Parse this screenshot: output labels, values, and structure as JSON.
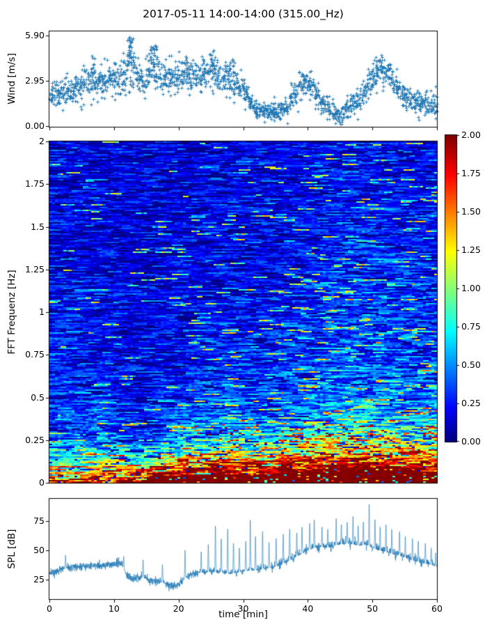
{
  "figure": {
    "title": "2017-05-11 14:00-14:00 (315.00_Hz)",
    "xlabel": "time [min]",
    "xticks": [
      {
        "v": 0,
        "label": "0"
      },
      {
        "v": 10,
        "label": "10"
      },
      {
        "v": 20,
        "label": "20"
      },
      {
        "v": 30,
        "label": "30"
      },
      {
        "v": 40,
        "label": "40"
      },
      {
        "v": 50,
        "label": "50"
      },
      {
        "v": 60,
        "label": "60"
      }
    ],
    "background": "#ffffff",
    "accent_color": "#1f77b4"
  },
  "chart_data": [
    {
      "id": "wind",
      "type": "scatter",
      "ylabel": "Wind [m/s]",
      "yticks": [
        {
          "v": 5.9,
          "label": "5.90"
        },
        {
          "v": 2.95,
          "label": "2.95"
        },
        {
          "v": 0.0,
          "label": "0.00"
        }
      ],
      "ylim": [
        -0.045,
        6.17
      ],
      "xlim": [
        0,
        60
      ],
      "marker": "plus",
      "color": "#1f77b4",
      "n_points": 1700,
      "envelope_t_min": [
        0,
        1,
        2,
        3,
        4,
        5,
        6,
        7,
        8,
        9,
        10,
        11,
        12,
        13,
        14,
        15,
        16,
        17,
        18,
        19,
        20,
        21,
        22,
        23,
        24,
        25,
        26,
        27,
        28,
        29,
        30,
        31,
        32,
        33,
        34,
        35,
        36,
        37,
        38,
        39,
        40,
        41,
        42,
        43,
        44,
        45,
        46,
        47,
        48,
        49,
        50,
        51,
        52,
        53,
        54,
        55,
        56,
        57,
        58,
        59,
        60
      ],
      "mean_mps": [
        1.9,
        2.1,
        2.3,
        2.4,
        2.5,
        2.6,
        2.7,
        2.8,
        3.0,
        3.1,
        3.2,
        3.4,
        3.8,
        3.4,
        3.1,
        3.3,
        3.7,
        3.3,
        3.1,
        3.2,
        3.4,
        3.3,
        3.2,
        3.3,
        3.4,
        3.5,
        3.3,
        3.2,
        3.1,
        2.8,
        2.4,
        1.6,
        1.1,
        1.0,
        0.9,
        1.0,
        1.1,
        1.5,
        2.2,
        2.6,
        2.8,
        2.2,
        1.6,
        1.3,
        0.9,
        0.6,
        1.2,
        1.5,
        1.7,
        2.4,
        3.0,
        3.6,
        3.8,
        3.1,
        2.3,
        1.9,
        1.6,
        1.4,
        1.5,
        1.3,
        1.5
      ],
      "spread_mps": [
        0.5,
        0.5,
        0.5,
        0.5,
        0.5,
        0.5,
        0.5,
        0.5,
        0.5,
        0.5,
        0.55,
        0.7,
        0.75,
        0.7,
        0.55,
        0.55,
        0.65,
        0.55,
        0.55,
        0.55,
        0.55,
        0.55,
        0.55,
        0.55,
        0.55,
        0.6,
        0.55,
        0.55,
        0.55,
        0.5,
        0.45,
        0.3,
        0.28,
        0.28,
        0.28,
        0.3,
        0.32,
        0.45,
        0.5,
        0.5,
        0.5,
        0.45,
        0.35,
        0.35,
        0.3,
        0.3,
        0.4,
        0.45,
        0.45,
        0.5,
        0.5,
        0.5,
        0.5,
        0.5,
        0.45,
        0.4,
        0.4,
        0.4,
        0.4,
        0.4,
        0.4
      ],
      "gusts": [
        {
          "t": 12.5,
          "peak": 5.9,
          "n": 26
        },
        {
          "t": 16.1,
          "peak": 5.35,
          "n": 18
        },
        {
          "t": 6.9,
          "peak": 4.7,
          "n": 10
        },
        {
          "t": 21.2,
          "peak": 4.5,
          "n": 8
        },
        {
          "t": 25.3,
          "peak": 5.0,
          "n": 14
        },
        {
          "t": 28.0,
          "peak": 4.4,
          "n": 8
        },
        {
          "t": 50.9,
          "peak": 4.35,
          "n": 12
        }
      ]
    },
    {
      "id": "fft_spectrogram",
      "type": "heatmap",
      "ylabel": "FFT Frequenz [Hz]",
      "yticks": [
        {
          "v": 2,
          "label": "2"
        },
        {
          "v": 1.75,
          "label": "1.75"
        },
        {
          "v": 1.5,
          "label": "1.5"
        },
        {
          "v": 1.25,
          "label": "1.25"
        },
        {
          "v": 1,
          "label": "1"
        },
        {
          "v": 0.75,
          "label": "0.75"
        },
        {
          "v": 0.5,
          "label": "0.5"
        },
        {
          "v": 0.25,
          "label": "0.25"
        },
        {
          "v": 0,
          "label": "0"
        }
      ],
      "ylim": [
        0,
        2
      ],
      "xlim": [
        0,
        60
      ],
      "colormap": "jet",
      "colormap_stops": [
        [
          0.0,
          "#000080"
        ],
        [
          0.11,
          "#0000ff"
        ],
        [
          0.36,
          "#00ffff"
        ],
        [
          0.62,
          "#ffff00"
        ],
        [
          0.87,
          "#ff0000"
        ],
        [
          1.0,
          "#800000"
        ]
      ],
      "vmin": 0.0,
      "vmax": 2.0,
      "colorbar_ticks": [
        {
          "v": 2.0,
          "label": "2.00"
        },
        {
          "v": 1.75,
          "label": "1.75"
        },
        {
          "v": 1.5,
          "label": "1.50"
        },
        {
          "v": 1.25,
          "label": "1.25"
        },
        {
          "v": 1.0,
          "label": "1.00"
        },
        {
          "v": 0.75,
          "label": "0.75"
        },
        {
          "v": 0.5,
          "label": "0.50"
        },
        {
          "v": 0.25,
          "label": "0.25"
        },
        {
          "v": 0.0,
          "label": "0.00"
        }
      ],
      "freq_centers_hz": [
        1.9,
        1.6,
        1.3,
        1.05,
        0.85,
        0.6,
        0.42,
        0.3,
        0.21,
        0.15,
        0.09,
        0.03
      ],
      "time_centers_min": [
        2.5,
        7.5,
        12.5,
        17.5,
        22.5,
        27.5,
        32.5,
        37.5,
        42.5,
        47.5,
        52.5,
        57.5
      ],
      "intensity_grid": [
        [
          0.18,
          0.17,
          0.14,
          0.14,
          0.16,
          0.17,
          0.17,
          0.18,
          0.2,
          0.22,
          0.21,
          0.2
        ],
        [
          0.19,
          0.18,
          0.15,
          0.15,
          0.17,
          0.18,
          0.18,
          0.2,
          0.23,
          0.26,
          0.24,
          0.22
        ],
        [
          0.2,
          0.19,
          0.15,
          0.16,
          0.18,
          0.2,
          0.19,
          0.22,
          0.26,
          0.3,
          0.27,
          0.24
        ],
        [
          0.22,
          0.21,
          0.16,
          0.17,
          0.2,
          0.23,
          0.21,
          0.25,
          0.3,
          0.34,
          0.3,
          0.27
        ],
        [
          0.24,
          0.23,
          0.17,
          0.19,
          0.23,
          0.27,
          0.24,
          0.29,
          0.34,
          0.38,
          0.34,
          0.3
        ],
        [
          0.27,
          0.27,
          0.19,
          0.22,
          0.28,
          0.33,
          0.29,
          0.35,
          0.4,
          0.44,
          0.4,
          0.36
        ],
        [
          0.32,
          0.33,
          0.23,
          0.28,
          0.36,
          0.44,
          0.38,
          0.46,
          0.52,
          0.57,
          0.52,
          0.47
        ],
        [
          0.4,
          0.42,
          0.3,
          0.38,
          0.5,
          0.62,
          0.54,
          0.65,
          0.74,
          0.8,
          0.73,
          0.66
        ],
        [
          0.52,
          0.57,
          0.42,
          0.55,
          0.75,
          0.92,
          0.82,
          0.98,
          1.1,
          1.18,
          1.08,
          1.0
        ],
        [
          0.7,
          0.8,
          0.62,
          0.85,
          1.1,
          1.28,
          1.18,
          1.35,
          1.48,
          1.55,
          1.45,
          1.38
        ],
        [
          1.0,
          1.15,
          1.15,
          1.55,
          1.7,
          1.8,
          1.78,
          1.88,
          1.92,
          1.95,
          1.92,
          1.88
        ],
        [
          1.45,
          1.6,
          1.85,
          2.0,
          2.0,
          2.0,
          2.0,
          2.0,
          2.0,
          2.0,
          2.0,
          2.0
        ]
      ],
      "texture": {
        "rows": 245,
        "cols": 139,
        "seg_min": 2,
        "seg_max": 6,
        "noise_base": 0.1,
        "noise_gain": 0.3,
        "bright_streak_base_p": 0.012,
        "bright_streak_time_gain": 0.05,
        "speckle_p": 0.025
      }
    },
    {
      "id": "spl",
      "type": "line",
      "ylabel": "SPL [dB]",
      "yticks": [
        {
          "v": 75,
          "label": "75"
        },
        {
          "v": 50,
          "label": "50"
        },
        {
          "v": 25,
          "label": "25"
        }
      ],
      "ylim": [
        8.6,
        93.7
      ],
      "xlim": [
        0,
        60
      ],
      "color": "#1f77b4",
      "line_width": 0.7,
      "noise_db": 1.6,
      "base_t_min": [
        0,
        1,
        2,
        3,
        4,
        5,
        6,
        7,
        8,
        9,
        10,
        11,
        12,
        13,
        14,
        15,
        16,
        17,
        18,
        19,
        20,
        21,
        22,
        23,
        24,
        25,
        26,
        27,
        28,
        29,
        30,
        31,
        32,
        33,
        34,
        35,
        36,
        37,
        38,
        39,
        40,
        41,
        42,
        43,
        44,
        45,
        46,
        47,
        48,
        49,
        50,
        51,
        52,
        53,
        54,
        55,
        56,
        57,
        58,
        59,
        60
      ],
      "base_db": [
        31,
        32,
        34,
        35,
        36,
        36,
        37,
        37,
        37,
        38,
        38,
        40,
        28,
        26,
        27,
        26,
        24,
        23,
        22,
        20,
        21,
        26,
        30,
        31,
        31,
        32,
        31,
        31,
        30,
        31,
        32,
        33,
        33,
        34,
        35,
        36,
        38,
        41,
        44,
        47,
        50,
        52,
        53,
        52,
        54,
        55,
        56,
        55,
        54,
        55,
        52,
        50,
        49,
        47,
        46,
        44,
        42,
        40,
        39,
        38,
        36
      ],
      "spikes": [
        [
          2.5,
          46
        ],
        [
          11.5,
          45
        ],
        [
          14.5,
          42
        ],
        [
          17.5,
          38
        ],
        [
          21,
          50
        ],
        [
          23.5,
          49
        ],
        [
          24.6,
          55
        ],
        [
          25.7,
          71
        ],
        [
          26.6,
          60
        ],
        [
          27.6,
          68
        ],
        [
          28.5,
          56
        ],
        [
          29.4,
          52
        ],
        [
          30.4,
          58
        ],
        [
          31.1,
          76
        ],
        [
          31.9,
          62
        ],
        [
          33,
          66
        ],
        [
          34,
          57
        ],
        [
          35.1,
          60
        ],
        [
          36.2,
          64
        ],
        [
          37.2,
          68
        ],
        [
          38.3,
          65
        ],
        [
          39.1,
          70
        ],
        [
          40.3,
          73
        ],
        [
          41,
          76
        ],
        [
          42.2,
          70
        ],
        [
          43.1,
          68
        ],
        [
          44.4,
          77
        ],
        [
          45.2,
          72
        ],
        [
          46.1,
          74
        ],
        [
          47,
          79
        ],
        [
          47.8,
          71
        ],
        [
          48.6,
          74
        ],
        [
          49.5,
          89
        ],
        [
          50.4,
          76
        ],
        [
          51.2,
          70
        ],
        [
          52.1,
          72
        ],
        [
          53,
          68
        ],
        [
          54.2,
          66
        ],
        [
          55.1,
          62
        ],
        [
          56.2,
          60
        ],
        [
          57.1,
          58
        ],
        [
          58.2,
          56
        ],
        [
          59.1,
          52
        ],
        [
          59.8,
          48
        ]
      ]
    }
  ]
}
